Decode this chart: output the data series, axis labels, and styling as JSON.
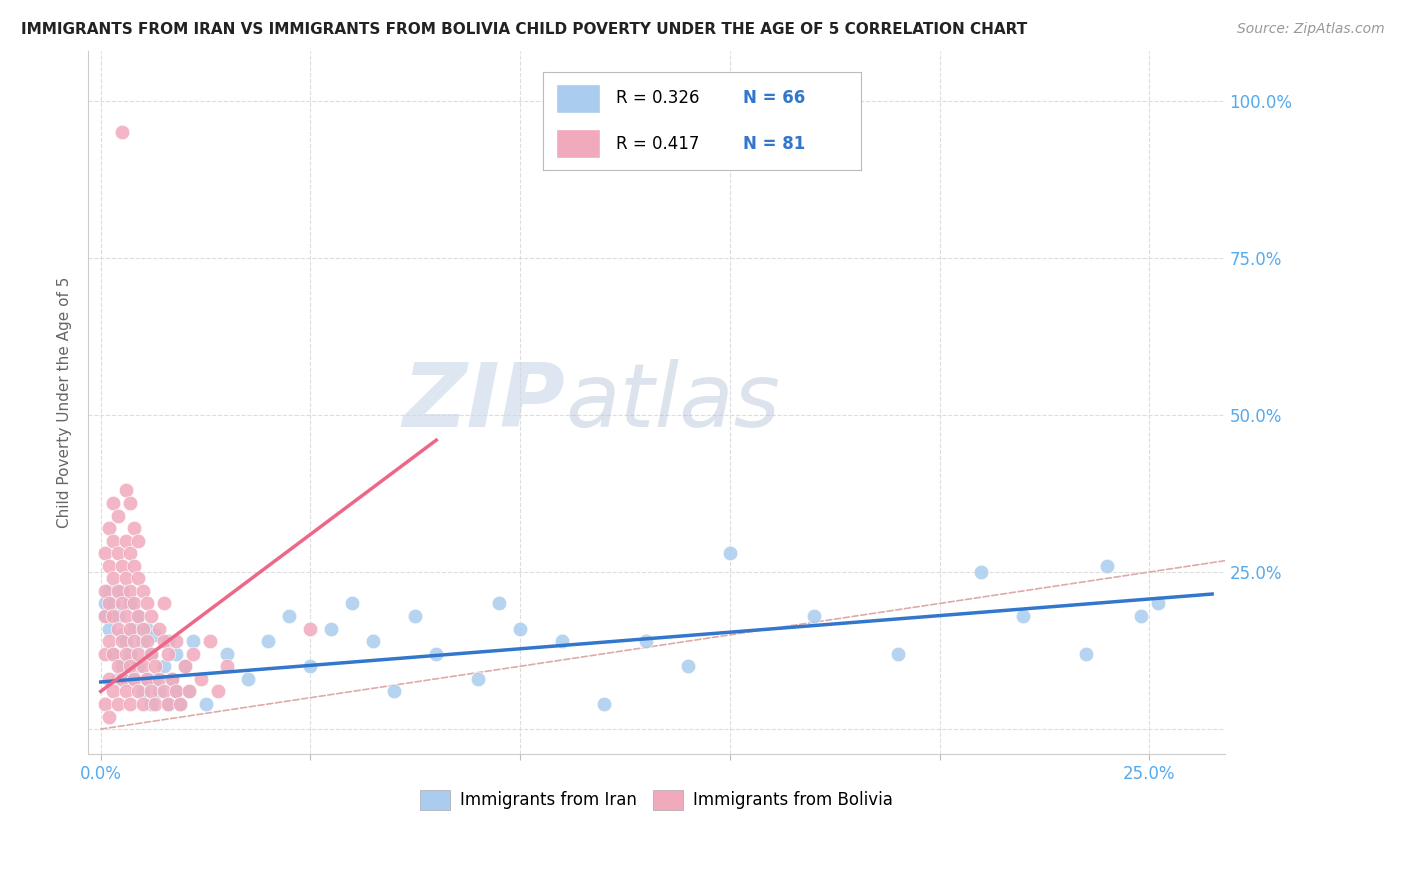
{
  "title": "IMMIGRANTS FROM IRAN VS IMMIGRANTS FROM BOLIVIA CHILD POVERTY UNDER THE AGE OF 5 CORRELATION CHART",
  "source": "Source: ZipAtlas.com",
  "ylabel": "Child Poverty Under the Age of 5",
  "yticks": [
    0.0,
    0.25,
    0.5,
    0.75,
    1.0
  ],
  "ytick_labels": [
    "",
    "25.0%",
    "50.0%",
    "75.0%",
    "100.0%"
  ],
  "xticks": [
    0.0,
    0.05,
    0.1,
    0.15,
    0.2,
    0.25
  ],
  "xtick_labels": [
    "0.0%",
    "",
    "",
    "",
    "",
    "25.0%"
  ],
  "xlim": [
    -0.003,
    0.268
  ],
  "ylim": [
    -0.04,
    1.08
  ],
  "watermark_zip": "ZIP",
  "watermark_atlas": "atlas",
  "legend_iran_r": "R = 0.326",
  "legend_iran_n": "N = 66",
  "legend_bolivia_r": "R = 0.417",
  "legend_bolivia_n": "N = 81",
  "iran_color": "#aaccee",
  "bolivia_color": "#f0aabc",
  "iran_line_color": "#3377cc",
  "bolivia_line_color": "#ee6688",
  "diagonal_color": "#ddaaaa",
  "grid_color": "#dddddd",
  "title_color": "#222222",
  "axis_tick_color": "#55aaee",
  "legend_r_color": "#000000",
  "legend_n_color": "#3377cc",
  "iran_scatter": [
    [
      0.001,
      0.18
    ],
    [
      0.001,
      0.2
    ],
    [
      0.002,
      0.16
    ],
    [
      0.002,
      0.22
    ],
    [
      0.003,
      0.12
    ],
    [
      0.003,
      0.2
    ],
    [
      0.004,
      0.08
    ],
    [
      0.004,
      0.18
    ],
    [
      0.005,
      0.1
    ],
    [
      0.005,
      0.15
    ],
    [
      0.005,
      0.22
    ],
    [
      0.006,
      0.08
    ],
    [
      0.006,
      0.14
    ],
    [
      0.007,
      0.12
    ],
    [
      0.007,
      0.2
    ],
    [
      0.008,
      0.08
    ],
    [
      0.008,
      0.16
    ],
    [
      0.009,
      0.1
    ],
    [
      0.009,
      0.18
    ],
    [
      0.01,
      0.06
    ],
    [
      0.01,
      0.14
    ],
    [
      0.011,
      0.08
    ],
    [
      0.011,
      0.16
    ],
    [
      0.012,
      0.04
    ],
    [
      0.012,
      0.12
    ],
    [
      0.013,
      0.08
    ],
    [
      0.013,
      0.15
    ],
    [
      0.014,
      0.06
    ],
    [
      0.015,
      0.1
    ],
    [
      0.016,
      0.04
    ],
    [
      0.016,
      0.14
    ],
    [
      0.017,
      0.08
    ],
    [
      0.018,
      0.06
    ],
    [
      0.018,
      0.12
    ],
    [
      0.019,
      0.04
    ],
    [
      0.02,
      0.1
    ],
    [
      0.021,
      0.06
    ],
    [
      0.022,
      0.14
    ],
    [
      0.025,
      0.04
    ],
    [
      0.03,
      0.12
    ],
    [
      0.035,
      0.08
    ],
    [
      0.04,
      0.14
    ],
    [
      0.045,
      0.18
    ],
    [
      0.05,
      0.1
    ],
    [
      0.055,
      0.16
    ],
    [
      0.06,
      0.2
    ],
    [
      0.065,
      0.14
    ],
    [
      0.07,
      0.06
    ],
    [
      0.075,
      0.18
    ],
    [
      0.08,
      0.12
    ],
    [
      0.09,
      0.08
    ],
    [
      0.095,
      0.2
    ],
    [
      0.1,
      0.16
    ],
    [
      0.11,
      0.14
    ],
    [
      0.12,
      0.04
    ],
    [
      0.13,
      0.14
    ],
    [
      0.14,
      0.1
    ],
    [
      0.15,
      0.28
    ],
    [
      0.17,
      0.18
    ],
    [
      0.19,
      0.12
    ],
    [
      0.21,
      0.25
    ],
    [
      0.22,
      0.18
    ],
    [
      0.235,
      0.12
    ],
    [
      0.24,
      0.26
    ],
    [
      0.248,
      0.18
    ],
    [
      0.252,
      0.2
    ]
  ],
  "bolivia_scatter": [
    [
      0.001,
      0.04
    ],
    [
      0.001,
      0.12
    ],
    [
      0.001,
      0.18
    ],
    [
      0.001,
      0.22
    ],
    [
      0.001,
      0.28
    ],
    [
      0.002,
      0.02
    ],
    [
      0.002,
      0.08
    ],
    [
      0.002,
      0.14
    ],
    [
      0.002,
      0.2
    ],
    [
      0.002,
      0.26
    ],
    [
      0.002,
      0.32
    ],
    [
      0.003,
      0.06
    ],
    [
      0.003,
      0.12
    ],
    [
      0.003,
      0.18
    ],
    [
      0.003,
      0.24
    ],
    [
      0.003,
      0.3
    ],
    [
      0.003,
      0.36
    ],
    [
      0.004,
      0.04
    ],
    [
      0.004,
      0.1
    ],
    [
      0.004,
      0.16
    ],
    [
      0.004,
      0.22
    ],
    [
      0.004,
      0.28
    ],
    [
      0.004,
      0.34
    ],
    [
      0.005,
      0.08
    ],
    [
      0.005,
      0.14
    ],
    [
      0.005,
      0.2
    ],
    [
      0.005,
      0.26
    ],
    [
      0.005,
      0.95
    ],
    [
      0.006,
      0.06
    ],
    [
      0.006,
      0.12
    ],
    [
      0.006,
      0.18
    ],
    [
      0.006,
      0.24
    ],
    [
      0.006,
      0.3
    ],
    [
      0.006,
      0.38
    ],
    [
      0.007,
      0.04
    ],
    [
      0.007,
      0.1
    ],
    [
      0.007,
      0.16
    ],
    [
      0.007,
      0.22
    ],
    [
      0.007,
      0.28
    ],
    [
      0.007,
      0.36
    ],
    [
      0.008,
      0.08
    ],
    [
      0.008,
      0.14
    ],
    [
      0.008,
      0.2
    ],
    [
      0.008,
      0.26
    ],
    [
      0.008,
      0.32
    ],
    [
      0.009,
      0.06
    ],
    [
      0.009,
      0.12
    ],
    [
      0.009,
      0.18
    ],
    [
      0.009,
      0.24
    ],
    [
      0.009,
      0.3
    ],
    [
      0.01,
      0.04
    ],
    [
      0.01,
      0.1
    ],
    [
      0.01,
      0.16
    ],
    [
      0.01,
      0.22
    ],
    [
      0.011,
      0.08
    ],
    [
      0.011,
      0.14
    ],
    [
      0.011,
      0.2
    ],
    [
      0.012,
      0.06
    ],
    [
      0.012,
      0.12
    ],
    [
      0.012,
      0.18
    ],
    [
      0.013,
      0.04
    ],
    [
      0.013,
      0.1
    ],
    [
      0.014,
      0.08
    ],
    [
      0.014,
      0.16
    ],
    [
      0.015,
      0.06
    ],
    [
      0.015,
      0.14
    ],
    [
      0.015,
      0.2
    ],
    [
      0.016,
      0.04
    ],
    [
      0.016,
      0.12
    ],
    [
      0.017,
      0.08
    ],
    [
      0.018,
      0.06
    ],
    [
      0.018,
      0.14
    ],
    [
      0.019,
      0.04
    ],
    [
      0.02,
      0.1
    ],
    [
      0.021,
      0.06
    ],
    [
      0.022,
      0.12
    ],
    [
      0.024,
      0.08
    ],
    [
      0.026,
      0.14
    ],
    [
      0.028,
      0.06
    ],
    [
      0.03,
      0.1
    ],
    [
      0.05,
      0.16
    ]
  ],
  "iran_line_x": [
    0.0,
    0.265
  ],
  "iran_line_y": [
    0.075,
    0.215
  ],
  "bolivia_line_x": [
    0.0,
    0.08
  ],
  "bolivia_line_y": [
    0.06,
    0.46
  ]
}
